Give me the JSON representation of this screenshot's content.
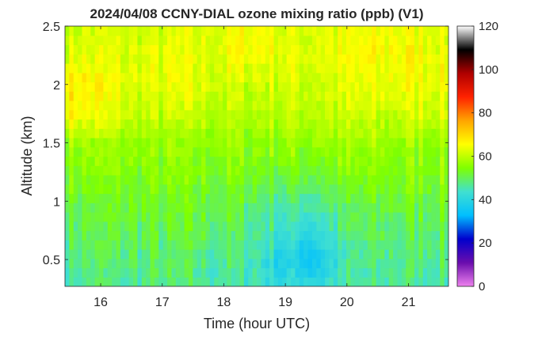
{
  "chart_data": {
    "type": "heatmap",
    "title": "2024/04/08 CCNY-DIAL ozone mixing ratio (ppb) (V1)",
    "xlabel": "Time (hour UTC)",
    "ylabel": "Altitude (km)",
    "xlim": [
      15.42,
      21.65
    ],
    "ylim": [
      0.27,
      2.5
    ],
    "x_ticks": [
      16,
      17,
      18,
      19,
      20,
      21
    ],
    "x_tick_labels": [
      "16",
      "17",
      "18",
      "19",
      "20",
      "21"
    ],
    "y_ticks": [
      0.5,
      1,
      1.5,
      2,
      2.5
    ],
    "y_tick_labels": [
      "0.5",
      "1",
      "1.5",
      "2",
      "2.5"
    ],
    "colorbar": {
      "range": [
        0,
        120
      ],
      "ticks": [
        0,
        20,
        40,
        60,
        80,
        100,
        120
      ],
      "tick_labels": [
        "0",
        "20",
        "40",
        "60",
        "80",
        "100",
        "120"
      ],
      "colormap": [
        "#ee82ee",
        "#6a0dad",
        "#0000cd",
        "#00bfff",
        "#40e0d0",
        "#7fff00",
        "#ffff00",
        "#ffa500",
        "#ff2200",
        "#b00000",
        "#000000",
        "#ffffff"
      ]
    },
    "x": [
      15.5,
      16.0,
      16.5,
      17.0,
      17.5,
      18.0,
      18.5,
      19.0,
      19.25,
      19.5,
      20.0,
      20.5,
      21.0,
      21.5
    ],
    "y": [
      0.3,
      0.5,
      0.75,
      1.0,
      1.25,
      1.5,
      1.75,
      2.0,
      2.25,
      2.5
    ],
    "z": [
      [
        46,
        47,
        47,
        47,
        47,
        46,
        45,
        41,
        40,
        41,
        45,
        46,
        46,
        46
      ],
      [
        47,
        48,
        48,
        48,
        48,
        47,
        45,
        38,
        37,
        37,
        45,
        47,
        48,
        48
      ],
      [
        49,
        50,
        50,
        50,
        50,
        49,
        47,
        44,
        42,
        43,
        47,
        49,
        50,
        50
      ],
      [
        52,
        52,
        52,
        52,
        52,
        51,
        50,
        47,
        47,
        47,
        50,
        51,
        52,
        52
      ],
      [
        55,
        55,
        54,
        54,
        54,
        54,
        53,
        53,
        53,
        53,
        54,
        54,
        55,
        55
      ],
      [
        57,
        57,
        56,
        56,
        56,
        56,
        56,
        57,
        56,
        57,
        57,
        57,
        57,
        57
      ],
      [
        66,
        64,
        60,
        60,
        60,
        59,
        59,
        60,
        60,
        60,
        60,
        60,
        62,
        62
      ],
      [
        68,
        66,
        63,
        63,
        63,
        62,
        61,
        62,
        62,
        62,
        63,
        63,
        65,
        65
      ],
      [
        63,
        63,
        62,
        63,
        63,
        63,
        66,
        63,
        63,
        63,
        64,
        65,
        66,
        64
      ],
      [
        61,
        62,
        62,
        62,
        62,
        64,
        66,
        63,
        62,
        63,
        63,
        64,
        65,
        63
      ]
    ]
  }
}
